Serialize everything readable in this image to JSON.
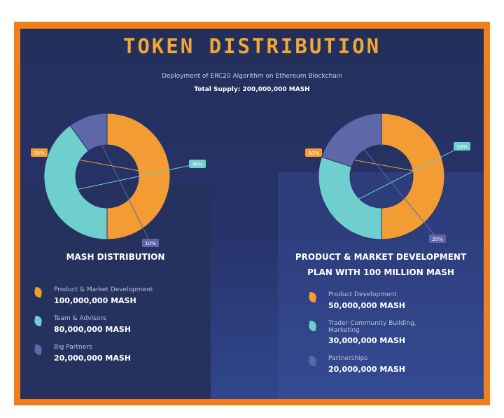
{
  "header": {
    "title": "TOKEN DISTRIBUTION",
    "subtitle": "Deployment of ERC20 Algorithm on Ethereum Blockchain",
    "supply": "Total Supply: 200,000,000 MASH"
  },
  "colors": {
    "frame": "#f07f1c",
    "background": "#27336a",
    "orange": "#f39c33",
    "teal": "#6fcfcf",
    "purple": "#5e68a8",
    "title": "#f1a635"
  },
  "left": {
    "title": "MASH DISTRIBUTION",
    "legend": [
      {
        "icon": "orange-leaf-icon",
        "label": "Product & Market Development",
        "value": "100,000,000 MASH"
      },
      {
        "icon": "teal-leaf-icon",
        "label": "Team & Advisors",
        "value": "80,000,000 MASH"
      },
      {
        "icon": "purple-leaf-icon",
        "label": "Big Partners",
        "value": "20,000,000 MASH"
      }
    ]
  },
  "right": {
    "title_line1": "PRODUCT & MARKET DEVELOPMENT",
    "title_line2": "PLAN WITH 100 MILLION MASH",
    "legend": [
      {
        "icon": "orange-leaf-icon",
        "label": "Product Development",
        "value": "50,000,000 MASH"
      },
      {
        "icon": "teal-leaf-icon",
        "label": "Trader Community Building, Marketing",
        "value": "30,000,000 MASH"
      },
      {
        "icon": "purple-leaf-icon",
        "label": "Partnerships",
        "value": "20,000,000 MASH"
      }
    ]
  },
  "chart_data": [
    {
      "type": "pie",
      "title": "MASH DISTRIBUTION",
      "categories": [
        "Product & Market Development",
        "Team & Advisors",
        "Big Partners"
      ],
      "values": [
        50,
        40,
        10
      ],
      "labels": [
        "50%",
        "40%",
        "10%"
      ],
      "colors": [
        "#f39c33",
        "#6fcfcf",
        "#5e68a8"
      ]
    },
    {
      "type": "pie",
      "title": "PRODUCT & MARKET DEVELOPMENT PLAN WITH 100 MILLION MASH",
      "categories": [
        "Product Development",
        "Trader Community Building, Marketing",
        "Partnerships"
      ],
      "values": [
        50,
        30,
        20
      ],
      "labels": [
        "50%",
        "30%",
        "20%"
      ],
      "colors": [
        "#f39c33",
        "#6fcfcf",
        "#5e68a8"
      ]
    }
  ]
}
